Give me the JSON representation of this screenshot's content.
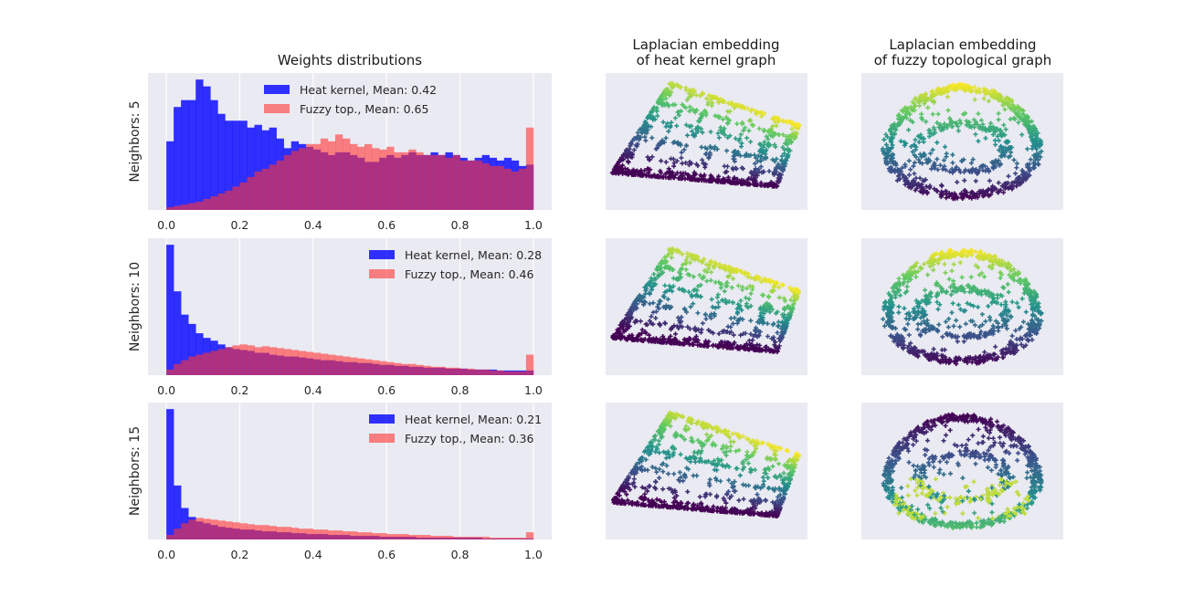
{
  "colors": {
    "panel_bg": "#eaeaf2",
    "grid": "#ffffff",
    "heat": "#0000ff",
    "fuzzy": "#ff3333",
    "viridis": [
      "#440154",
      "#3b528b",
      "#21918c",
      "#5ec962",
      "#fde725"
    ]
  },
  "titles": {
    "hist": "Weights distributions",
    "heat_embed_1": "Laplacian embedding",
    "heat_embed_2": "of heat kernel graph",
    "fuzzy_embed_1": "Laplacian embedding",
    "fuzzy_embed_2": "of fuzzy topological graph"
  },
  "chart_data": [
    {
      "type": "bar",
      "panel": "hist-neighbors-5",
      "ylabel": "Neighbors: 5",
      "xlim": [
        -0.05,
        1.05
      ],
      "xticks": [
        "0.0",
        "0.2",
        "0.4",
        "0.6",
        "0.8",
        "1.0"
      ],
      "bins": 50,
      "legend_position": "upper center",
      "series": [
        {
          "name": "Heat kernel, Mean: 0.42",
          "values": [
            50,
            75,
            80,
            80,
            95,
            90,
            80,
            70,
            65,
            65,
            65,
            60,
            62,
            58,
            60,
            52,
            45,
            50,
            48,
            46,
            44,
            42,
            40,
            42,
            42,
            40,
            38,
            35,
            35,
            38,
            40,
            38,
            40,
            42,
            40,
            40,
            42,
            40,
            42,
            40,
            38,
            36,
            38,
            40,
            38,
            36,
            38,
            36,
            32,
            33
          ]
        },
        {
          "name": "Fuzzy top., Mean: 0.65",
          "values": [
            2,
            3,
            4,
            5,
            6,
            8,
            10,
            12,
            14,
            17,
            20,
            24,
            28,
            30,
            33,
            36,
            40,
            43,
            45,
            48,
            48,
            52,
            50,
            55,
            52,
            48,
            46,
            48,
            45,
            44,
            46,
            42,
            42,
            44,
            42,
            40,
            40,
            40,
            38,
            40,
            36,
            36,
            36,
            34,
            32,
            32,
            30,
            28,
            30,
            60
          ]
        }
      ]
    },
    {
      "type": "bar",
      "panel": "hist-neighbors-10",
      "ylabel": "Neighbors: 10",
      "xlim": [
        -0.05,
        1.05
      ],
      "xticks": [
        "0.0",
        "0.2",
        "0.4",
        "0.6",
        "0.8",
        "1.0"
      ],
      "bins": 50,
      "legend_position": "upper right",
      "series": [
        {
          "name": "Heat kernel, Mean: 0.28",
          "values": [
            140,
            90,
            65,
            55,
            45,
            40,
            37,
            33,
            30,
            28,
            27,
            26,
            24,
            24,
            22,
            21,
            20,
            20,
            19,
            18,
            17,
            16,
            16,
            15,
            14,
            14,
            13,
            13,
            12,
            11,
            11,
            10,
            10,
            9,
            9,
            8,
            8,
            8,
            7,
            7,
            7,
            6,
            6,
            6,
            6,
            5,
            5,
            5,
            5,
            5
          ]
        },
        {
          "name": "Fuzzy top., Mean: 0.46",
          "values": [
            6,
            12,
            16,
            20,
            22,
            24,
            26,
            28,
            30,
            32,
            33,
            32,
            30,
            31,
            30,
            29,
            28,
            27,
            26,
            25,
            24,
            23,
            22,
            21,
            20,
            19,
            18,
            17,
            16,
            15,
            14,
            13,
            12,
            12,
            11,
            10,
            9,
            9,
            8,
            8,
            7,
            7,
            6,
            6,
            5,
            5,
            4,
            4,
            4,
            22
          ]
        }
      ]
    },
    {
      "type": "bar",
      "panel": "hist-neighbors-15",
      "ylabel": "Neighbors: 15",
      "xlim": [
        -0.05,
        1.05
      ],
      "xticks": [
        "0.0",
        "0.2",
        "0.4",
        "0.6",
        "0.8",
        "1.0"
      ],
      "bins": 50,
      "legend_position": "upper right",
      "series": [
        {
          "name": "Heat kernel, Mean: 0.21",
          "values": [
            145,
            60,
            35,
            25,
            20,
            18,
            16,
            14,
            13,
            12,
            11,
            11,
            10,
            9,
            9,
            8,
            8,
            7,
            7,
            6,
            6,
            6,
            5,
            5,
            5,
            4,
            4,
            4,
            4,
            3,
            3,
            3,
            3,
            3,
            2,
            2,
            2,
            2,
            2,
            2,
            2,
            2,
            2,
            1,
            1,
            1,
            1,
            1,
            1,
            1
          ]
        },
        {
          "name": "Fuzzy top., Mean: 0.36",
          "values": [
            5,
            12,
            18,
            22,
            24,
            23,
            22,
            21,
            20,
            19,
            18,
            17,
            16,
            16,
            15,
            14,
            14,
            13,
            12,
            12,
            11,
            11,
            10,
            10,
            9,
            9,
            8,
            8,
            7,
            7,
            6,
            6,
            6,
            5,
            5,
            5,
            4,
            4,
            4,
            3,
            3,
            3,
            3,
            3,
            2,
            2,
            2,
            2,
            2,
            8
          ]
        }
      ]
    },
    {
      "type": "scatter",
      "panel": "heat-embed-5",
      "marker": "plus",
      "colormap": "viridis"
    },
    {
      "type": "scatter",
      "panel": "fuzzy-embed-5",
      "marker": "plus",
      "colormap": "viridis"
    },
    {
      "type": "scatter",
      "panel": "heat-embed-10",
      "marker": "plus",
      "colormap": "viridis"
    },
    {
      "type": "scatter",
      "panel": "fuzzy-embed-10",
      "marker": "plus",
      "colormap": "viridis"
    },
    {
      "type": "scatter",
      "panel": "heat-embed-15",
      "marker": "plus",
      "colormap": "viridis"
    },
    {
      "type": "scatter",
      "panel": "fuzzy-embed-15",
      "marker": "plus",
      "colormap": "viridis"
    }
  ]
}
